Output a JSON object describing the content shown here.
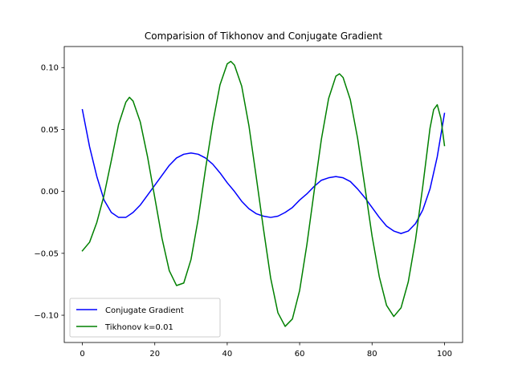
{
  "chart_data": {
    "type": "line",
    "title": "Comparision of Tikhonov and Conjugate Gradient",
    "xlabel": "",
    "ylabel": "",
    "xlim": [
      -5,
      105
    ],
    "ylim": [
      -0.122,
      0.117
    ],
    "xticks": [
      0,
      20,
      40,
      60,
      80,
      100
    ],
    "yticks": [
      -0.1,
      -0.05,
      0.0,
      0.05,
      0.1
    ],
    "ytick_labels": [
      "−0.10",
      "−0.05",
      "0.00",
      "0.05",
      "0.10"
    ],
    "grid": false,
    "legend_position": "lower-left",
    "series": [
      {
        "name": "Conjugate Gradient",
        "color": "#0000ff",
        "points": [
          [
            0,
            0.066
          ],
          [
            2,
            0.036
          ],
          [
            4,
            0.012
          ],
          [
            6,
            -0.007
          ],
          [
            8,
            -0.017
          ],
          [
            10,
            -0.021
          ],
          [
            12,
            -0.021
          ],
          [
            14,
            -0.017
          ],
          [
            16,
            -0.011
          ],
          [
            18,
            -0.003
          ],
          [
            20,
            0.005
          ],
          [
            22,
            0.013
          ],
          [
            24,
            0.021
          ],
          [
            26,
            0.027
          ],
          [
            28,
            0.03
          ],
          [
            30,
            0.031
          ],
          [
            32,
            0.03
          ],
          [
            34,
            0.027
          ],
          [
            36,
            0.022
          ],
          [
            38,
            0.015
          ],
          [
            40,
            0.007
          ],
          [
            42,
            0.0
          ],
          [
            44,
            -0.008
          ],
          [
            46,
            -0.014
          ],
          [
            48,
            -0.018
          ],
          [
            50,
            -0.02
          ],
          [
            52,
            -0.021
          ],
          [
            54,
            -0.02
          ],
          [
            56,
            -0.017
          ],
          [
            58,
            -0.013
          ],
          [
            60,
            -0.007
          ],
          [
            62,
            -0.002
          ],
          [
            64,
            0.004
          ],
          [
            66,
            0.009
          ],
          [
            68,
            0.011
          ],
          [
            70,
            0.012
          ],
          [
            72,
            0.011
          ],
          [
            74,
            0.008
          ],
          [
            76,
            0.002
          ],
          [
            78,
            -0.005
          ],
          [
            80,
            -0.013
          ],
          [
            82,
            -0.021
          ],
          [
            84,
            -0.028
          ],
          [
            86,
            -0.032
          ],
          [
            88,
            -0.034
          ],
          [
            90,
            -0.032
          ],
          [
            92,
            -0.026
          ],
          [
            94,
            -0.015
          ],
          [
            96,
            0.002
          ],
          [
            98,
            0.028
          ],
          [
            100,
            0.063
          ]
        ]
      },
      {
        "name": "Tikhonov k=0.01",
        "color": "#008000",
        "points": [
          [
            0,
            -0.048
          ],
          [
            2,
            -0.041
          ],
          [
            4,
            -0.025
          ],
          [
            6,
            -0.003
          ],
          [
            8,
            0.025
          ],
          [
            10,
            0.054
          ],
          [
            12,
            0.072
          ],
          [
            13,
            0.076
          ],
          [
            14,
            0.073
          ],
          [
            16,
            0.056
          ],
          [
            18,
            0.028
          ],
          [
            20,
            -0.005
          ],
          [
            22,
            -0.038
          ],
          [
            24,
            -0.064
          ],
          [
            26,
            -0.076
          ],
          [
            28,
            -0.074
          ],
          [
            30,
            -0.055
          ],
          [
            32,
            -0.022
          ],
          [
            34,
            0.018
          ],
          [
            36,
            0.055
          ],
          [
            38,
            0.086
          ],
          [
            40,
            0.103
          ],
          [
            41,
            0.105
          ],
          [
            42,
            0.102
          ],
          [
            44,
            0.085
          ],
          [
            46,
            0.053
          ],
          [
            48,
            0.012
          ],
          [
            50,
            -0.03
          ],
          [
            52,
            -0.07
          ],
          [
            54,
            -0.098
          ],
          [
            56,
            -0.109
          ],
          [
            58,
            -0.103
          ],
          [
            60,
            -0.08
          ],
          [
            62,
            -0.043
          ],
          [
            64,
            0.0
          ],
          [
            66,
            0.042
          ],
          [
            68,
            0.075
          ],
          [
            70,
            0.093
          ],
          [
            71,
            0.095
          ],
          [
            72,
            0.092
          ],
          [
            74,
            0.074
          ],
          [
            76,
            0.043
          ],
          [
            78,
            0.004
          ],
          [
            80,
            -0.036
          ],
          [
            82,
            -0.069
          ],
          [
            84,
            -0.092
          ],
          [
            86,
            -0.101
          ],
          [
            88,
            -0.094
          ],
          [
            90,
            -0.073
          ],
          [
            92,
            -0.039
          ],
          [
            94,
            0.004
          ],
          [
            96,
            0.051
          ],
          [
            97,
            0.066
          ],
          [
            98,
            0.07
          ],
          [
            99,
            0.059
          ],
          [
            100,
            0.037
          ]
        ]
      }
    ]
  }
}
